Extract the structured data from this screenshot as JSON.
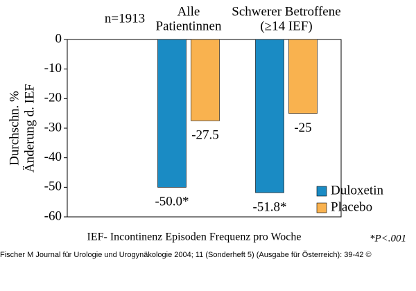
{
  "chart_data": {
    "type": "bar",
    "annotations": {
      "sample": "n=1913",
      "footnote": "IEF- Incontinenz Episoden Frequenz pro Woche",
      "significance": "*P<.001",
      "source": "Fischer M Journal für Urologie und Urogynäkologie 2004; 11 (Sonderheft 5) (Ausgabe für Österreich): 39-42 ©"
    },
    "y_label": [
      "Durchschn. %",
      "Änderung d. IEF"
    ],
    "categories": [
      [
        "Alle",
        "Patientinnen"
      ],
      [
        "Schwerer Betroffene",
        "(≥14 IEF)"
      ]
    ],
    "series": [
      {
        "name": "Duloxetin",
        "color": "#1a8bc4",
        "values": [
          -50.0,
          -51.8
        ],
        "value_labels": [
          "-50.0*",
          "-51.8*"
        ]
      },
      {
        "name": "Placebo",
        "color": "#f9b24f",
        "values": [
          -27.5,
          -25
        ],
        "value_labels": [
          "-27.5",
          "-25"
        ]
      }
    ],
    "ylim": [
      0,
      -60
    ],
    "yticks": [
      0,
      -10,
      -20,
      -30,
      -40,
      -50,
      -60
    ],
    "legend": "lower right"
  }
}
